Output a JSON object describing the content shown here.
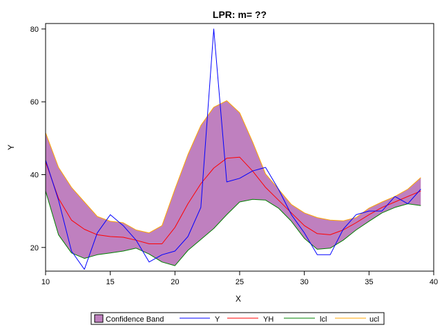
{
  "chart_data": {
    "type": "line",
    "title": "LPR: m= ??",
    "xlabel": "X",
    "ylabel": "Y",
    "xlim": [
      10,
      40
    ],
    "ylim": [
      13.5,
      81.5
    ],
    "x_ticks": [
      "10",
      "15",
      "20",
      "25",
      "30",
      "35",
      "40"
    ],
    "y_ticks": [
      "20",
      "40",
      "60",
      "80"
    ],
    "x_tick_values": [
      10,
      15,
      20,
      25,
      30,
      35,
      40
    ],
    "y_tick_values": [
      20,
      40,
      60,
      80
    ],
    "grid": false,
    "legend_position": "bottom",
    "x": [
      10,
      11,
      12,
      13,
      14,
      15,
      16,
      17,
      18,
      19,
      20,
      21,
      22,
      23,
      24,
      25,
      26,
      27,
      28,
      29,
      30,
      31,
      32,
      33,
      34,
      35,
      36,
      37,
      38,
      39
    ],
    "band": {
      "name": "Confidence Band",
      "color": "#bf80bf",
      "lower_series": "lcl",
      "upper_series": "ucl"
    },
    "series": [
      {
        "name": "Y",
        "color": "#0000ff",
        "values": [
          44,
          33,
          19,
          14,
          24,
          29,
          26,
          22,
          16,
          18,
          19,
          23,
          31,
          80,
          38,
          39,
          41,
          42,
          36,
          29,
          24,
          18,
          18,
          25,
          29,
          30,
          30,
          34,
          32,
          36
        ]
      },
      {
        "name": "YH",
        "color": "#ff0000",
        "values": [
          43.5,
          33.5,
          27.5,
          25,
          23.5,
          23,
          22.8,
          22,
          21,
          21,
          25.5,
          32,
          37.5,
          41.8,
          44.5,
          44.8,
          41,
          36.5,
          33,
          29.5,
          26,
          23.8,
          23.5,
          24.8,
          26.8,
          29,
          31,
          32.5,
          34,
          35.5
        ]
      },
      {
        "name": "lcl",
        "color": "#008000",
        "values": [
          35.5,
          23.5,
          18.5,
          17,
          18,
          18.5,
          19,
          19.8,
          18.2,
          16,
          15,
          19.2,
          22.2,
          25.2,
          29,
          32.5,
          33.2,
          33,
          30.8,
          27.2,
          22.5,
          19.5,
          19.8,
          22,
          24.8,
          27.2,
          29.5,
          31,
          32,
          31.5
        ]
      },
      {
        "name": "ucl",
        "color": "#ffa500",
        "values": [
          51.5,
          42,
          36.5,
          32.5,
          28.5,
          27.2,
          26.8,
          24.8,
          24,
          26,
          36,
          45.5,
          53.5,
          58.5,
          60.3,
          57,
          49,
          40.2,
          36,
          31.8,
          29.5,
          28.2,
          27.5,
          27.3,
          28.2,
          30.8,
          32.5,
          34,
          36,
          39.2
        ]
      }
    ]
  }
}
